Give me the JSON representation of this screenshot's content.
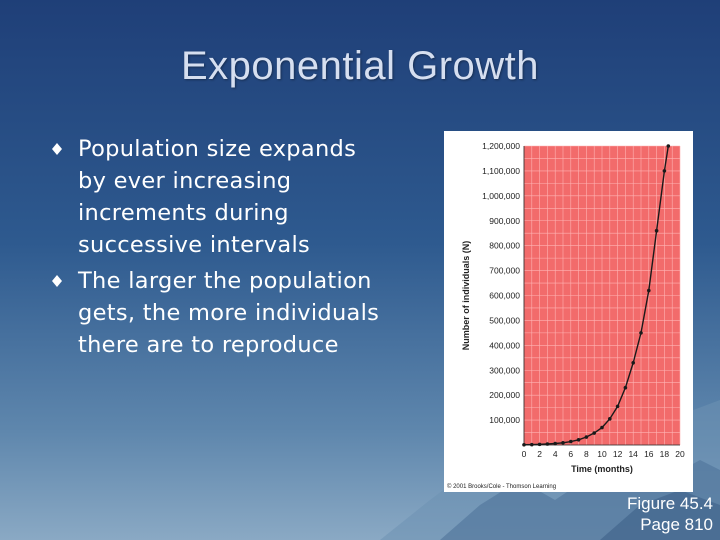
{
  "slide": {
    "title": "Exponential Growth",
    "bullets": [
      "Population size expands by ever increasing increments during successive intervals",
      "The larger the population gets, the more individuals there are to reproduce"
    ],
    "caption_line1": "Figure 45.4",
    "caption_line2": "Page 810"
  },
  "colors": {
    "plot_background": "#f26b6b",
    "curve": "#1a1a1a",
    "bullet": "#ffffff"
  },
  "chart_data": {
    "type": "line",
    "title": "",
    "xlabel": "Time (months)",
    "ylabel": "Number of individuals (N)",
    "xlim": [
      0,
      20
    ],
    "ylim": [
      0,
      1200000
    ],
    "x_ticks": [
      0,
      2,
      4,
      6,
      8,
      10,
      12,
      14,
      16,
      18,
      20
    ],
    "x_tick_labels": [
      "0",
      "2",
      "4",
      "6",
      "8",
      "10",
      "12",
      "14",
      "16",
      "18",
      "20"
    ],
    "y_ticks": [
      100000,
      200000,
      300000,
      400000,
      500000,
      600000,
      700000,
      800000,
      900000,
      1000000,
      1100000,
      1200000
    ],
    "y_tick_labels": [
      "100,000",
      "200,000",
      "300,000",
      "400,000",
      "500,000",
      "600,000",
      "700,000",
      "800,000",
      "900,000",
      "1,000,000",
      "1,100,000",
      "1,200,000"
    ],
    "grid": true,
    "copyright": "© 2001 Brooks/Cole - Thomson Learning",
    "series": [
      {
        "x": [
          0,
          1,
          2,
          3,
          4,
          5,
          6,
          7,
          8,
          9,
          10,
          11,
          12,
          13,
          14,
          15,
          16,
          17,
          18,
          18.5
        ],
        "y": [
          1000,
          1500,
          2500,
          4000,
          6000,
          9000,
          14000,
          21000,
          32000,
          48000,
          70000,
          105000,
          155000,
          230000,
          330000,
          450000,
          620000,
          860000,
          1100000,
          1200000
        ]
      }
    ]
  }
}
